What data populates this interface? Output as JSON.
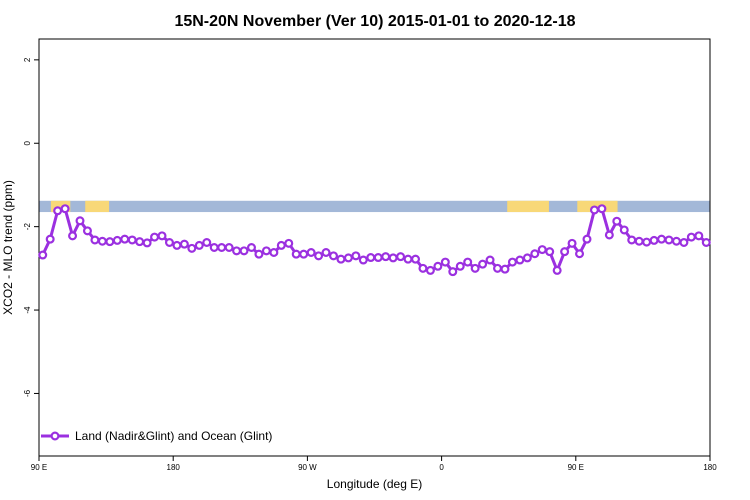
{
  "chart_data": {
    "type": "line",
    "title": "15N-20N November (Ver 10)   2015-01-01 to 2020-12-18",
    "xlabel": "Longitude (deg E)",
    "ylabel": "XCO2 - MLO trend (ppm)",
    "xlim": [
      90,
      540
    ],
    "ylim": [
      -7.5,
      2.5
    ],
    "x_ticks": [
      {
        "value": 90,
        "label": "90 E"
      },
      {
        "value": 180,
        "label": "180"
      },
      {
        "value": 270,
        "label": "90 W"
      },
      {
        "value": 360,
        "label": "0"
      },
      {
        "value": 450,
        "label": "90 E"
      },
      {
        "value": 540,
        "label": "180"
      }
    ],
    "y_ticks": [
      {
        "value": 2,
        "label": "2"
      },
      {
        "value": 0,
        "label": "0"
      },
      {
        "value": -2,
        "label": "-2"
      },
      {
        "value": -4,
        "label": "-4"
      },
      {
        "value": -6,
        "label": "-6"
      }
    ],
    "land_mask_band": {
      "y_range": [
        -1.65,
        -1.38
      ],
      "ocean_color": "#a3b8d8",
      "land_color": "#f8d878",
      "land_x_ranges": [
        [
          98,
          111
        ],
        [
          121,
          137
        ],
        [
          404,
          432
        ],
        [
          453,
          478
        ],
        [
          451,
          454
        ]
      ]
    },
    "series": [
      {
        "name": "Land (Nadir&Glint) and Ocean (Glint)",
        "color": "#9b30e0",
        "x": [
          92.5,
          97.5,
          102.5,
          107.5,
          112.5,
          117.5,
          122.5,
          127.5,
          132.5,
          137.5,
          142.5,
          147.5,
          152.5,
          157.5,
          162.5,
          167.5,
          172.5,
          177.5,
          182.5,
          187.5,
          192.5,
          197.5,
          202.5,
          207.5,
          212.5,
          217.5,
          222.5,
          227.5,
          232.5,
          237.5,
          242.5,
          247.5,
          252.5,
          257.5,
          262.5,
          267.5,
          272.5,
          277.5,
          282.5,
          287.5,
          292.5,
          297.5,
          302.5,
          307.5,
          312.5,
          317.5,
          322.5,
          327.5,
          332.5,
          337.5,
          342.5,
          347.5,
          352.5,
          357.5,
          362.5,
          367.5,
          372.5,
          377.5,
          382.5,
          387.5,
          392.5,
          397.5,
          402.5,
          407.5,
          412.5,
          417.5,
          422.5,
          427.5,
          432.5,
          437.5,
          442.5,
          447.5,
          452.5,
          457.5,
          462.5,
          467.5,
          472.5,
          477.5,
          482.5,
          487.5,
          492.5,
          497.5,
          502.5,
          507.5,
          512.5,
          517.5,
          522.5,
          527.5,
          532.5,
          537.5
        ],
        "values": [
          -2.68,
          -2.3,
          -1.62,
          -1.57,
          -2.22,
          -1.86,
          -2.1,
          -2.32,
          -2.35,
          -2.36,
          -2.33,
          -2.3,
          -2.32,
          -2.36,
          -2.39,
          -2.25,
          -2.22,
          -2.38,
          -2.45,
          -2.42,
          -2.52,
          -2.45,
          -2.38,
          -2.5,
          -2.5,
          -2.5,
          -2.58,
          -2.58,
          -2.5,
          -2.66,
          -2.58,
          -2.62,
          -2.45,
          -2.4,
          -2.66,
          -2.66,
          -2.62,
          -2.7,
          -2.62,
          -2.7,
          -2.78,
          -2.75,
          -2.7,
          -2.8,
          -2.74,
          -2.74,
          -2.72,
          -2.75,
          -2.72,
          -2.78,
          -2.78,
          -3.0,
          -3.05,
          -2.95,
          -2.85,
          -3.08,
          -2.95,
          -2.85,
          -3.0,
          -2.9,
          -2.8,
          -3.0,
          -3.02,
          -2.85,
          -2.8,
          -2.75,
          -2.65,
          -2.55,
          -2.6,
          -3.05,
          -2.6,
          -2.4,
          -2.65,
          -2.3,
          -1.6,
          -1.57,
          -2.2,
          -1.87,
          -2.08,
          -2.32,
          -2.35,
          -2.37,
          -2.33,
          -2.3,
          -2.32,
          -2.35,
          -2.38,
          -2.25,
          -2.22,
          -2.38
        ]
      }
    ],
    "legend": {
      "position": "bottom-left",
      "label": "Land (Nadir&Glint) and Ocean (Glint)"
    }
  }
}
